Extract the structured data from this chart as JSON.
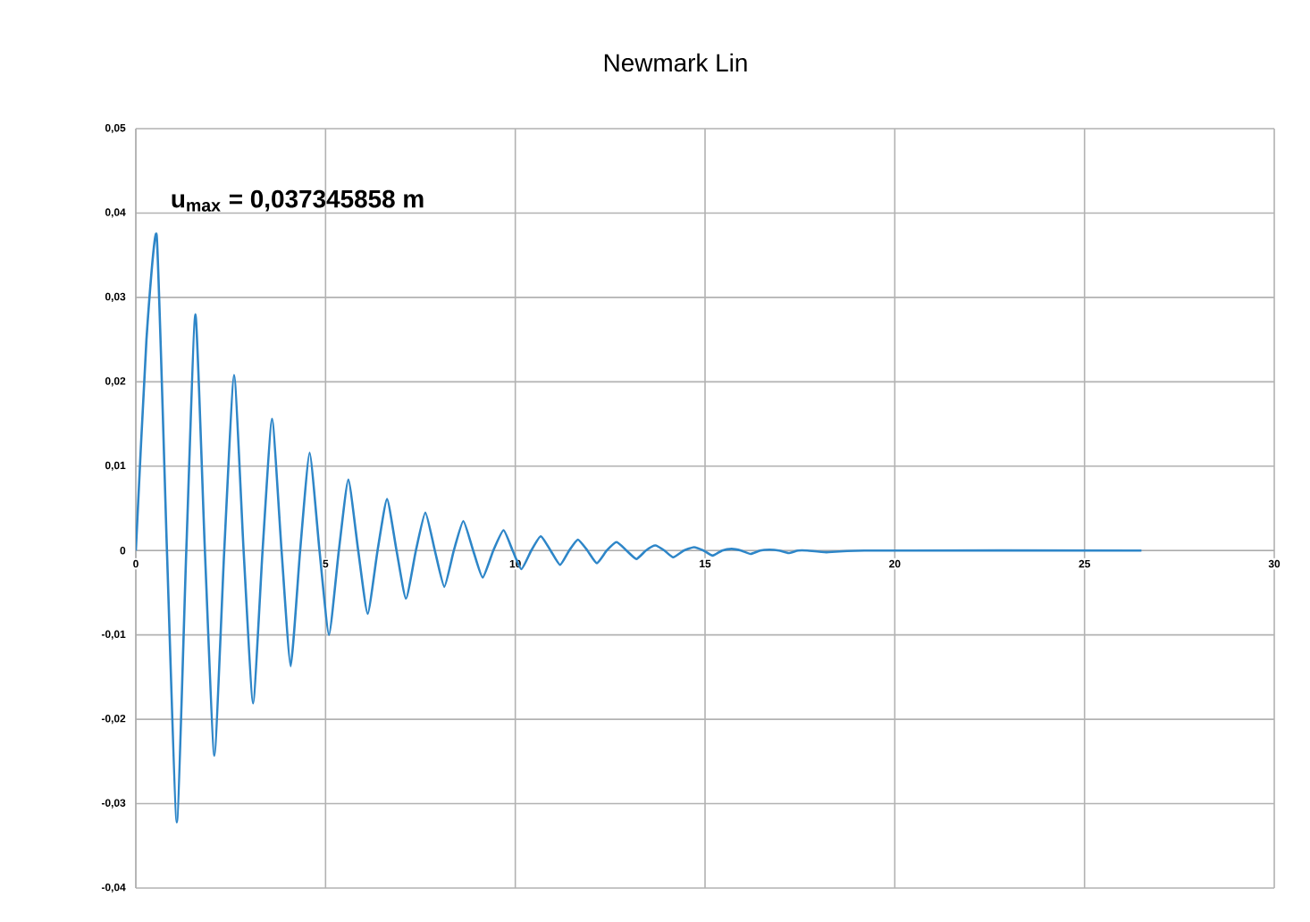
{
  "chart_data": {
    "type": "line",
    "title": "Newmark Lin",
    "annotations": [
      "**u$_{max}$ = 0,037345858 m**"
    ],
    "x": [
      0,
      0.28,
      0.55,
      0.82,
      1.08,
      1.33,
      1.57,
      1.82,
      2.07,
      2.33,
      2.59,
      2.84,
      3.09,
      3.34,
      3.59,
      3.84,
      4.08,
      4.33,
      4.58,
      4.84,
      5.09,
      5.35,
      5.6,
      5.86,
      6.11,
      6.37,
      6.62,
      6.87,
      7.12,
      7.38,
      7.63,
      7.88,
      8.13,
      8.38,
      8.63,
      8.89,
      9.14,
      9.42,
      9.69,
      9.93,
      10.16,
      10.42,
      10.67,
      10.93,
      11.18,
      11.42,
      11.65,
      11.9,
      12.15,
      12.41,
      12.67,
      12.93,
      13.19,
      13.44,
      13.69,
      13.93,
      14.16,
      14.44,
      14.71,
      14.96,
      15.2,
      15.45,
      15.7,
      15.95,
      16.2,
      16.45,
      16.7,
      16.95,
      17.2,
      17.45,
      17.7,
      18.2,
      19.2,
      26.5
    ],
    "series": [
      {
        "color": "#2e86c8",
        "values": [
          0,
          0.025,
          0.0373,
          0,
          -0.0322,
          0,
          0.028,
          0,
          -0.0243,
          0,
          0.0208,
          0,
          -0.0181,
          0,
          0.0156,
          0,
          -0.0137,
          0,
          0.0116,
          0,
          -0.01,
          0,
          0.0084,
          0,
          -0.0075,
          0,
          0.0061,
          0,
          -0.0057,
          0,
          0.0045,
          0,
          -0.0043,
          0,
          0.0035,
          0,
          -0.0032,
          0,
          0.0024,
          0,
          -0.0022,
          0,
          0.0017,
          0,
          -0.0017,
          0,
          0.0013,
          0,
          -0.0015,
          0,
          0.001,
          0,
          -0.001,
          0,
          0.0006,
          0,
          -0.0008,
          0,
          0.0004,
          0,
          -0.0006,
          0,
          0.0002,
          0,
          -0.0004,
          0,
          0.0001,
          0,
          -0.0003,
          0,
          0,
          -0.0002,
          0,
          0
        ]
      }
    ],
    "xlim": [
      0,
      30
    ],
    "xticks": [
      0,
      5,
      10,
      15,
      20,
      25,
      30
    ],
    "ylim": [
      -0.04,
      0.05
    ],
    "yticks": [
      {
        "value": -0.04,
        "label": "-0,04"
      },
      {
        "value": -0.03,
        "label": "-0,03"
      },
      {
        "value": -0.02,
        "label": "-0,02"
      },
      {
        "value": -0.01,
        "label": "-0,01"
      },
      {
        "value": 0,
        "label": "0"
      },
      {
        "value": 0.01,
        "label": "0,01"
      },
      {
        "value": 0.02,
        "label": "0,02"
      },
      {
        "value": 0.03,
        "label": "0,03"
      },
      {
        "value": 0.04,
        "label": "0,04"
      },
      {
        "value": 0.05,
        "label": "0,05"
      }
    ],
    "grid": true,
    "marker": "none",
    "line_style": "solid"
  }
}
